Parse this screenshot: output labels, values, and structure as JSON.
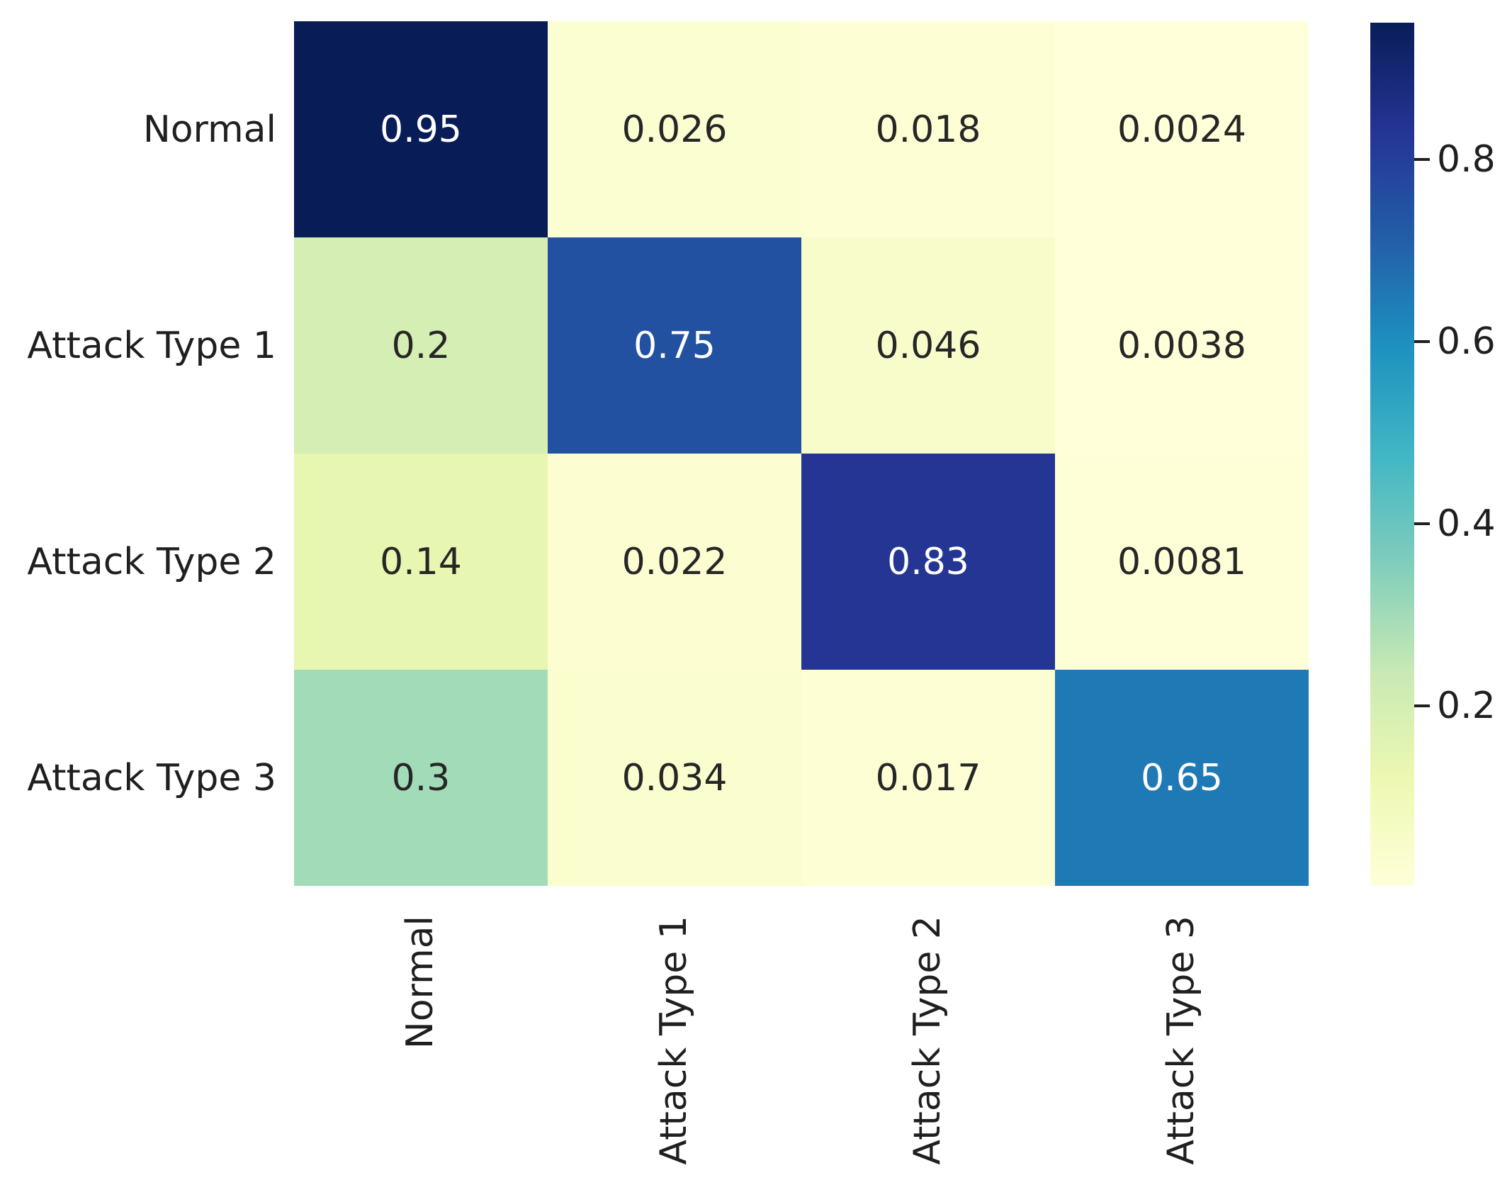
{
  "chart_data": {
    "type": "heatmap",
    "title": "",
    "row_labels": [
      "Normal",
      "Attack Type 1",
      "Attack Type 2",
      "Attack Type 3"
    ],
    "col_labels": [
      "Normal",
      "Attack Type 1",
      "Attack Type 2",
      "Attack Type 3"
    ],
    "values": [
      [
        0.95,
        0.026,
        0.018,
        0.0024
      ],
      [
        0.2,
        0.75,
        0.046,
        0.0038
      ],
      [
        0.14,
        0.022,
        0.83,
        0.0081
      ],
      [
        0.3,
        0.034,
        0.017,
        0.65
      ]
    ],
    "annotations": [
      [
        "0.95",
        "0.026",
        "0.018",
        "0.0024"
      ],
      [
        "0.2",
        "0.75",
        "0.046",
        "0.0038"
      ],
      [
        "0.14",
        "0.022",
        "0.83",
        "0.0081"
      ],
      [
        "0.3",
        "0.034",
        "0.017",
        "0.65"
      ]
    ],
    "colormap": "YlGnBu",
    "colormap_colors": [
      "#ffffd9",
      "#edf8b1",
      "#c7e9b4",
      "#7fcdbb",
      "#41b6c4",
      "#1d91c0",
      "#225ea8",
      "#253494",
      "#081d58"
    ],
    "vmin": 0.0024,
    "vmax": 0.95,
    "colorbar_ticks": [
      "0.2",
      "0.4",
      "0.6",
      "0.8"
    ],
    "legend_position": "right",
    "grid": false,
    "annotation_dark_color": "#262626",
    "annotation_light_color": "#ffffff"
  }
}
